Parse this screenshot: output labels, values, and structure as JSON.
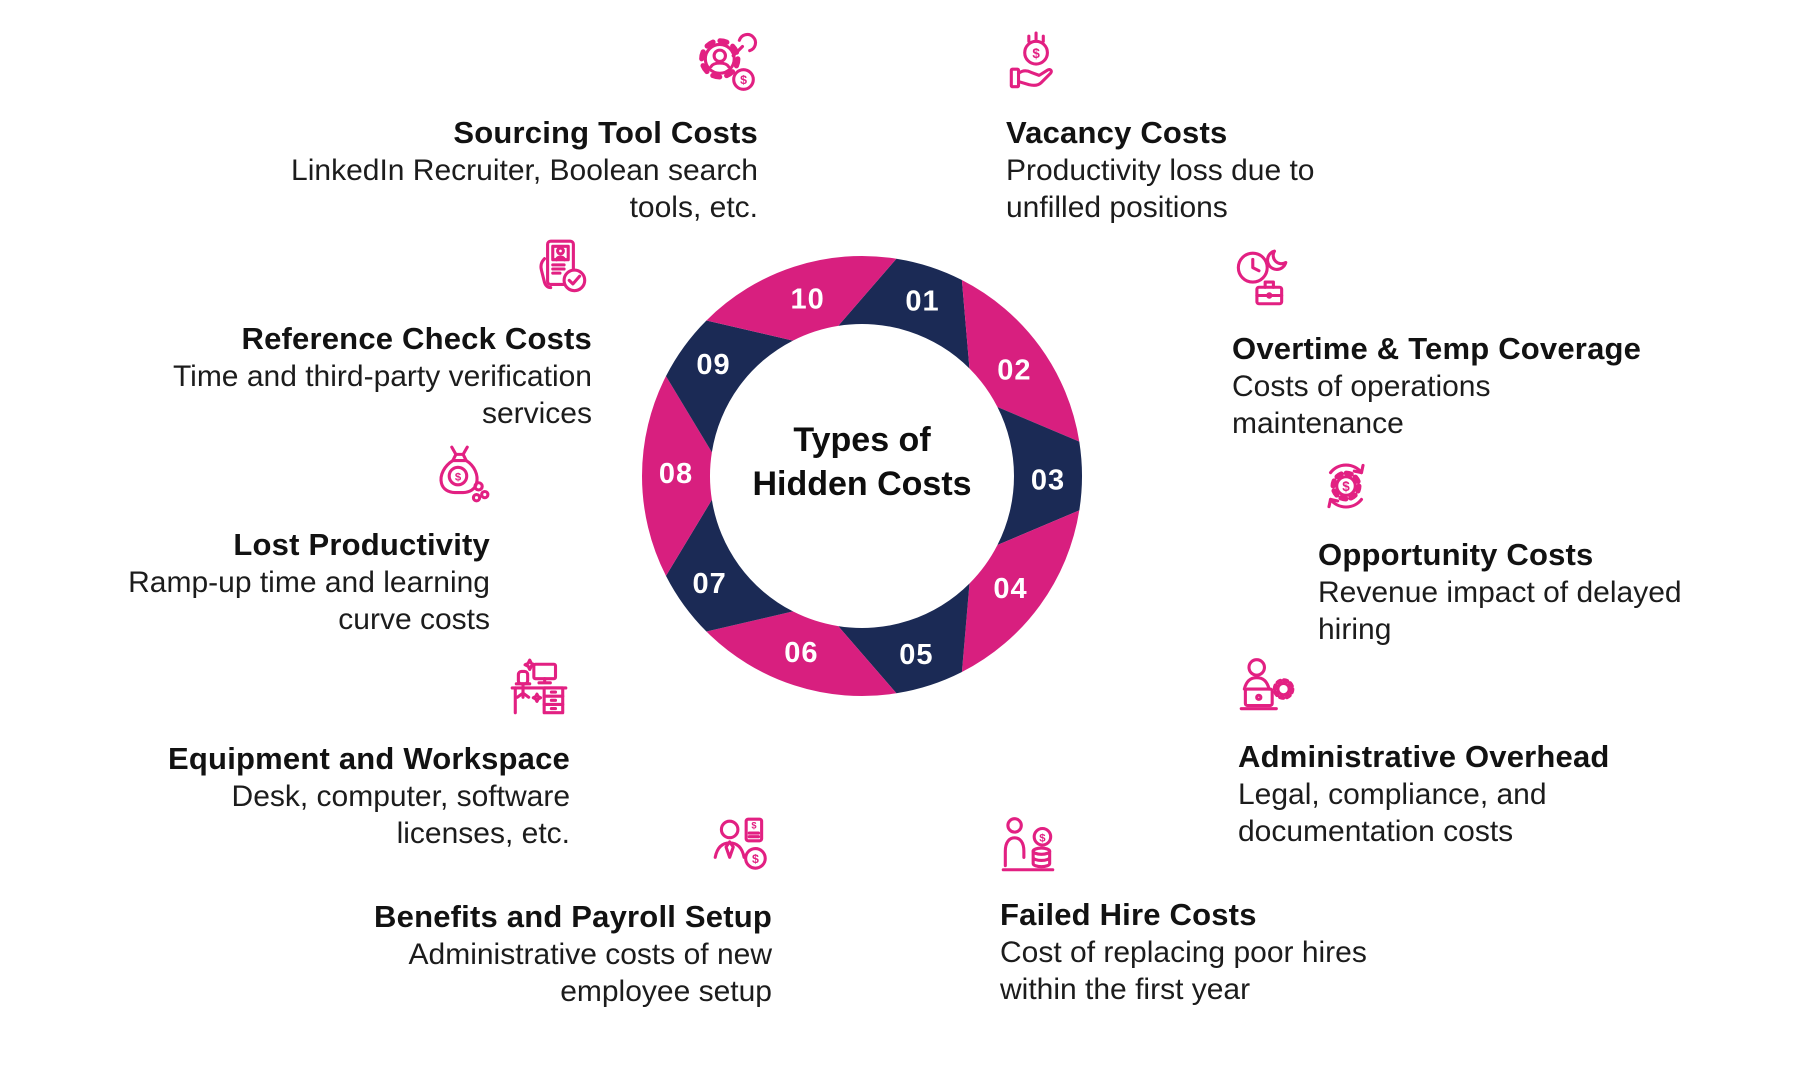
{
  "title": "Types of Hidden Costs",
  "colors": {
    "pink": "#D81F7F",
    "navy": "#1B2A55",
    "icon_pink": "#E22082",
    "number_text": "#FFFFFF",
    "text": "#121212",
    "background": "#FFFFFF"
  },
  "center": {
    "line1": "Types of",
    "line2": "Hidden Costs"
  },
  "ring": {
    "numbers": [
      "01",
      "02",
      "03",
      "04",
      "05",
      "06",
      "07",
      "08",
      "09",
      "10"
    ]
  },
  "items": [
    {
      "number": "01",
      "title": "Vacancy Costs",
      "desc": [
        "Productivity loss due to",
        "unfilled positions"
      ],
      "icon": "hand-dollar-coin"
    },
    {
      "number": "02",
      "title": "Overtime & Temp Coverage",
      "desc": [
        "Costs of operations",
        "maintenance"
      ],
      "icon": "clock-moon-briefcase"
    },
    {
      "number": "03",
      "title": "Opportunity Costs",
      "desc": [
        "Revenue impact of delayed",
        "hiring"
      ],
      "icon": "gear-dollar-refresh-arrows"
    },
    {
      "number": "04",
      "title": "Administrative Overhead",
      "desc": [
        "Legal, compliance, and",
        "documentation costs"
      ],
      "icon": "person-laptop-gear"
    },
    {
      "number": "05",
      "title": "Failed Hire Costs",
      "desc": [
        "Cost of replacing poor hires",
        "within the first year"
      ],
      "icon": "person-coin-stack"
    },
    {
      "number": "06",
      "title": "Benefits and Payroll Setup",
      "desc": [
        "Administrative costs of new",
        "employee setup"
      ],
      "icon": "person-tie-document-coin"
    },
    {
      "number": "07",
      "title": "Equipment and Workspace",
      "desc": [
        "Desk, computer, software",
        "licenses, etc."
      ],
      "icon": "desk-computer-chair"
    },
    {
      "number": "08",
      "title": "Lost Productivity",
      "desc": [
        "Ramp-up time and learning",
        "curve costs"
      ],
      "icon": "money-bag-leaking-coins"
    },
    {
      "number": "09",
      "title": "Reference Check Costs",
      "desc": [
        "Time and third-party verification",
        "services"
      ],
      "icon": "phone-profile-checkmark"
    },
    {
      "number": "10",
      "title": "Sourcing Tool Costs",
      "desc": [
        "LinkedIn Recruiter, Boolean search",
        "tools, etc."
      ],
      "icon": "gear-person-wrench-dollar"
    }
  ]
}
